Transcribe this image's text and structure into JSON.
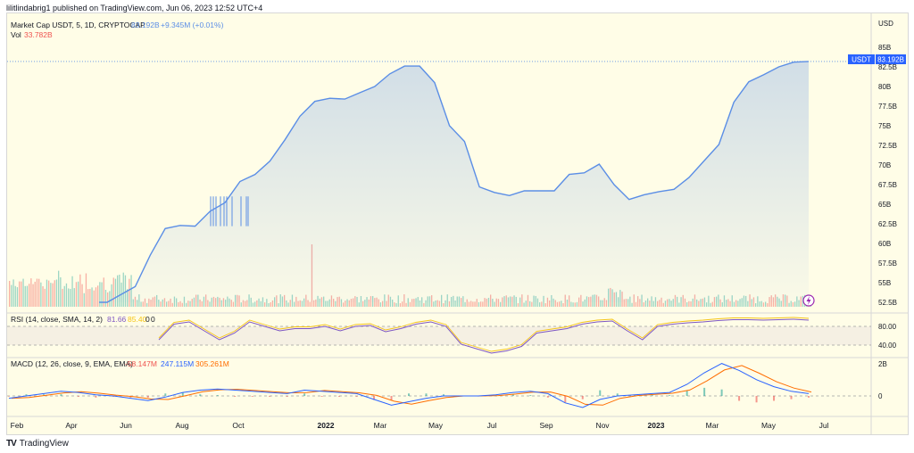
{
  "header": {
    "text": "lilitlindabrig1 published on TradingView.com, Jun 06, 2023 12:52 UTC+4"
  },
  "legend": {
    "symbol": "Market Cap USDT, 5, 1D, CRYPTOCAP",
    "last_value": "83.192B",
    "change": "+9.345M (+0.01%)",
    "vol_label": "Vol",
    "vol_value": "33.782B"
  },
  "rsi_legend": {
    "label": "RSI (14, close, SMA, 14, 2)",
    "value": "81.66",
    "ma_value": "85.40",
    "zero": "0",
    "zero2": "0"
  },
  "macd_legend": {
    "label": "MACD (12, 26, close, 9, EMA, EMA)",
    "hist": "-58.147M",
    "macd": "247.115M",
    "signal": "305.261M"
  },
  "price_badge": {
    "symbol": "USDT",
    "value": "83.192B"
  },
  "footer": {
    "brand": "TradingView"
  },
  "colors": {
    "line": "#5b8ee6",
    "up": "#26a69a",
    "down": "#ef5350",
    "rsi": "#7e57c2",
    "rsi_ma": "#f5c518",
    "macd": "#2962ff",
    "signal": "#ff6d00",
    "background": "#fffde7"
  },
  "chart_data": {
    "type": "area",
    "y_unit": "USD",
    "yticks": [
      "85B",
      "82.5B",
      "80B",
      "77.5B",
      "75B",
      "72.5B",
      "70B",
      "67.5B",
      "65B",
      "62.5B",
      "60B",
      "57.5B",
      "55B",
      "52.5B"
    ],
    "ylim": [
      52.5,
      85
    ],
    "x_ticks": [
      "Feb",
      "Apr",
      "Jun",
      "Aug",
      "Oct",
      "2022",
      "Mar",
      "May",
      "Jul",
      "Sep",
      "Nov",
      "2023",
      "Mar",
      "May",
      "Jul"
    ],
    "series": [
      {
        "name": "Market Cap USDT",
        "points": [
          [
            "Feb",
            52.5
          ],
          [
            "Apr",
            52.5
          ],
          [
            "May",
            54.5
          ],
          [
            "May",
            58.5
          ],
          [
            "Jun",
            61.9
          ],
          [
            "Jul",
            62.3
          ],
          [
            "Aug",
            62.2
          ],
          [
            "Aug",
            64.1
          ],
          [
            "Sep",
            65.2
          ],
          [
            "Oct",
            67.9
          ],
          [
            "Oct",
            68.8
          ],
          [
            "Nov",
            70.5
          ],
          [
            "Nov",
            73.2
          ],
          [
            "Dec",
            76.2
          ],
          [
            "2022",
            78.1
          ],
          [
            "2022",
            78.5
          ],
          [
            "Feb",
            78.4
          ],
          [
            "Mar",
            79.2
          ],
          [
            "Mar",
            80.0
          ],
          [
            "Apr",
            81.6
          ],
          [
            "Apr",
            82.6
          ],
          [
            "May",
            82.6
          ],
          [
            "May",
            80.5
          ],
          [
            "Jun",
            75.0
          ],
          [
            "Jun",
            73.0
          ],
          [
            "Jun",
            67.2
          ],
          [
            "Jul",
            66.5
          ],
          [
            "Jul",
            66.1
          ],
          [
            "Aug",
            66.7
          ],
          [
            "Sep",
            66.7
          ],
          [
            "Oct",
            66.7
          ],
          [
            "Oct",
            68.8
          ],
          [
            "Nov",
            69.0
          ],
          [
            "Nov",
            70.1
          ],
          [
            "Nov",
            67.5
          ],
          [
            "Dec",
            65.6
          ],
          [
            "Dec",
            66.2
          ],
          [
            "2023",
            66.6
          ],
          [
            "Jan",
            66.9
          ],
          [
            "Feb",
            68.4
          ],
          [
            "Feb",
            70.5
          ],
          [
            "Mar",
            72.6
          ],
          [
            "Mar",
            78.0
          ],
          [
            "Apr",
            80.6
          ],
          [
            "Apr",
            81.5
          ],
          [
            "May",
            82.5
          ],
          [
            "May",
            83.1
          ],
          [
            "Jun",
            83.19
          ]
        ]
      }
    ],
    "rsi": {
      "levels": [
        80,
        40
      ],
      "last": 81.66,
      "ma": 85.4
    },
    "macd": {
      "yticks": [
        "2B",
        "0"
      ],
      "hist": -58.147,
      "macd": 247.115,
      "signal": 305.261,
      "unit": "M"
    }
  }
}
